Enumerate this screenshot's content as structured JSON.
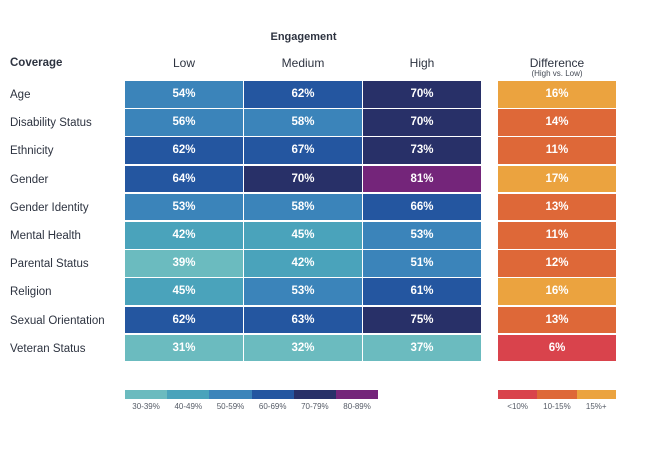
{
  "chart_data": {
    "type": "heatmap",
    "group_title": "Engagement",
    "row_header": "Coverage",
    "columns": [
      "Low",
      "Medium",
      "High"
    ],
    "difference_column": {
      "label": "Difference",
      "sublabel": "(High vs. Low)"
    },
    "rows": [
      {
        "label": "Age",
        "values": [
          54,
          62,
          70
        ],
        "difference": 16
      },
      {
        "label": "Disability Status",
        "values": [
          56,
          58,
          70
        ],
        "difference": 14
      },
      {
        "label": "Ethnicity",
        "values": [
          62,
          67,
          73
        ],
        "difference": 11
      },
      {
        "label": "Gender",
        "values": [
          64,
          70,
          81
        ],
        "difference": 17
      },
      {
        "label": "Gender Identity",
        "values": [
          53,
          58,
          66
        ],
        "difference": 13
      },
      {
        "label": "Mental Health",
        "values": [
          42,
          45,
          53
        ],
        "difference": 11
      },
      {
        "label": "Parental Status",
        "values": [
          39,
          42,
          51
        ],
        "difference": 12
      },
      {
        "label": "Religion",
        "values": [
          45,
          53,
          61
        ],
        "difference": 16
      },
      {
        "label": "Sexual Orientation",
        "values": [
          62,
          63,
          75
        ],
        "difference": 13
      },
      {
        "label": "Veteran Status",
        "values": [
          31,
          32,
          37
        ],
        "difference": 6
      }
    ],
    "value_unit": "%",
    "legend_engagement": [
      {
        "label": "30-39%",
        "min": 30,
        "max": 39,
        "color": "#6bbbbf"
      },
      {
        "label": "40-49%",
        "min": 40,
        "max": 49,
        "color": "#4aa3bb"
      },
      {
        "label": "50-59%",
        "min": 50,
        "max": 59,
        "color": "#3b84ba"
      },
      {
        "label": "60-69%",
        "min": 60,
        "max": 69,
        "color": "#2456a0"
      },
      {
        "label": "70-79%",
        "min": 70,
        "max": 79,
        "color": "#283068"
      },
      {
        "label": "80-89%",
        "min": 80,
        "max": 89,
        "color": "#74257a"
      }
    ],
    "legend_difference": [
      {
        "label": "<10%",
        "min": 0,
        "max": 9.99,
        "color": "#d9434c"
      },
      {
        "label": "10-15%",
        "min": 10,
        "max": 15,
        "color": "#de6838"
      },
      {
        "label": "15%+",
        "min": 15.01,
        "max": 100,
        "color": "#eba33f"
      }
    ]
  }
}
